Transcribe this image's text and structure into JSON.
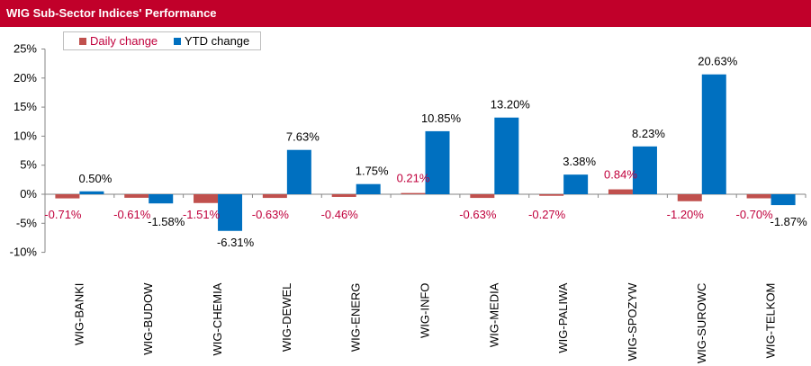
{
  "title": "WIG Sub-Sector Indices' Performance",
  "colors": {
    "daily": "#c0504d",
    "ytd": "#0070c0",
    "title_bg": "#c1002a",
    "daily_label": "#c0003c",
    "ytd_label": "#000000"
  },
  "legend": {
    "daily_label": "Daily change",
    "ytd_label": "YTD change"
  },
  "chart_data": {
    "type": "bar",
    "title": "WIG Sub-Sector Indices' Performance",
    "xlabel": "",
    "ylabel": "",
    "ylim": [
      -10,
      25
    ],
    "yticks": [
      -10,
      -5,
      0,
      5,
      10,
      15,
      20,
      25
    ],
    "ytick_labels": [
      "-10%",
      "-5%",
      "0%",
      "5%",
      "10%",
      "15%",
      "20%",
      "25%"
    ],
    "grid": false,
    "legend_position": "top-left",
    "categories": [
      "WIG-BANKI",
      "WIG-BUDOW",
      "WIG-CHEMIA",
      "WIG-DEWEL",
      "WIG-ENERG",
      "WIG-INFO",
      "WIG-MEDIA",
      "WIG-PALIWA",
      "WIG-SPOZYW",
      "WIG-SUROWC",
      "WIG-TELKOM"
    ],
    "series": [
      {
        "name": "Daily change",
        "values": [
          -0.71,
          -0.61,
          -1.51,
          -0.63,
          -0.46,
          0.21,
          -0.63,
          -0.27,
          0.84,
          -1.2,
          -0.7
        ],
        "labels": [
          "-0.71%",
          "-0.61%",
          "-1.51%",
          "-0.63%",
          "-0.46%",
          "0.21%",
          "-0.63%",
          "-0.27%",
          "0.84%",
          "-1.20%",
          "-0.70%"
        ]
      },
      {
        "name": "YTD change",
        "values": [
          0.5,
          -1.58,
          -6.31,
          7.63,
          1.75,
          10.85,
          13.2,
          3.38,
          8.23,
          20.63,
          -1.87
        ],
        "labels": [
          "0.50%",
          "-1.58%",
          "-6.31%",
          "7.63%",
          "1.75%",
          "10.85%",
          "13.20%",
          "3.38%",
          "8.23%",
          "20.63%",
          "-1.87%"
        ]
      }
    ]
  }
}
